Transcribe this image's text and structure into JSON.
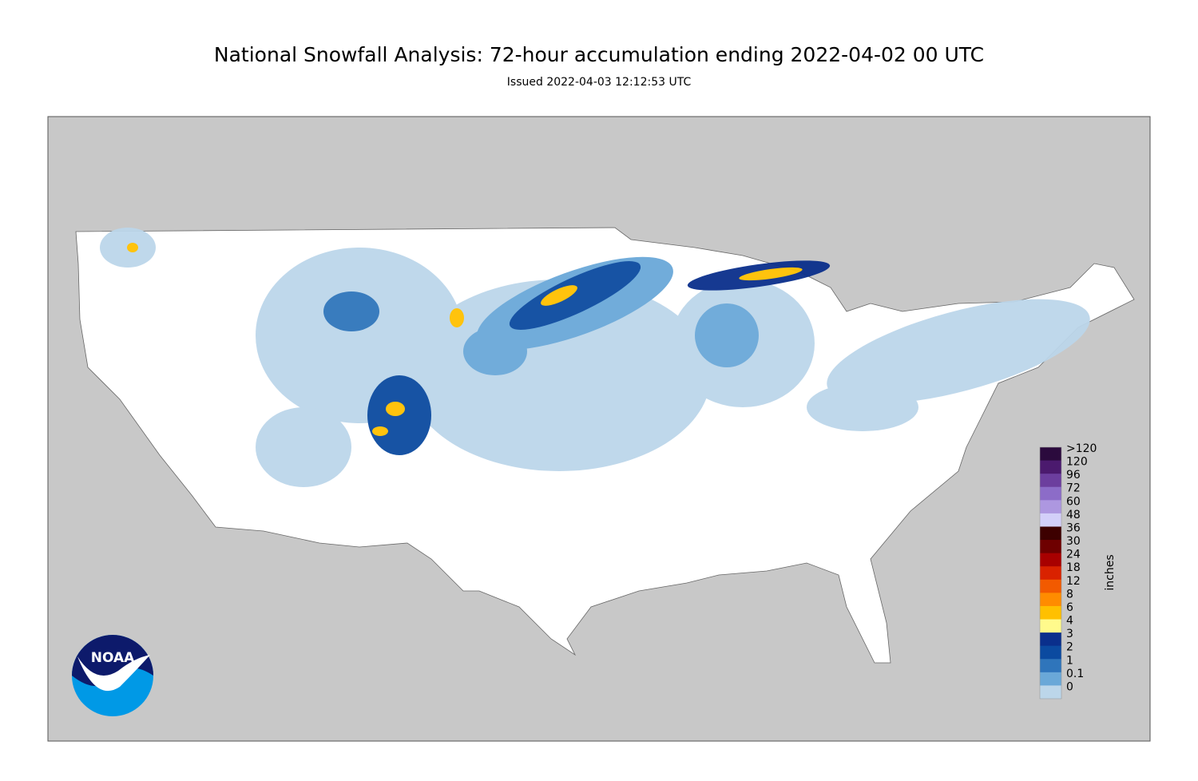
{
  "header": {
    "title": "National Snowfall Analysis: 72-hour accumulation ending 2022-04-02 00 UTC",
    "subtitle": "Issued 2022-04-03 12:12:53 UTC"
  },
  "legend": {
    "unit": "inches",
    "items": [
      {
        "label": ">120",
        "color": "#2b0a3d"
      },
      {
        "label": "120",
        "color": "#4b1a6e"
      },
      {
        "label": "96",
        "color": "#6c3e9e"
      },
      {
        "label": "72",
        "color": "#8c6cc8"
      },
      {
        "label": "60",
        "color": "#ad97e0"
      },
      {
        "label": "48",
        "color": "#d3cff9"
      },
      {
        "label": "36",
        "color": "#3d0000"
      },
      {
        "label": "30",
        "color": "#6e0000"
      },
      {
        "label": "24",
        "color": "#a80000"
      },
      {
        "label": "18",
        "color": "#d92200"
      },
      {
        "label": "12",
        "color": "#f25a00"
      },
      {
        "label": "8",
        "color": "#ff8c00"
      },
      {
        "label": "6",
        "color": "#ffc000"
      },
      {
        "label": "4",
        "color": "#fffa8c"
      },
      {
        "label": "3",
        "color": "#0a2f8c"
      },
      {
        "label": "2",
        "color": "#0b4aa0"
      },
      {
        "label": "1",
        "color": "#2f75bb"
      },
      {
        "label": "0.1",
        "color": "#6aa8d8"
      },
      {
        "label": "0",
        "color": "#bcd6ea"
      }
    ]
  },
  "logo": {
    "text": "NOAA"
  }
}
